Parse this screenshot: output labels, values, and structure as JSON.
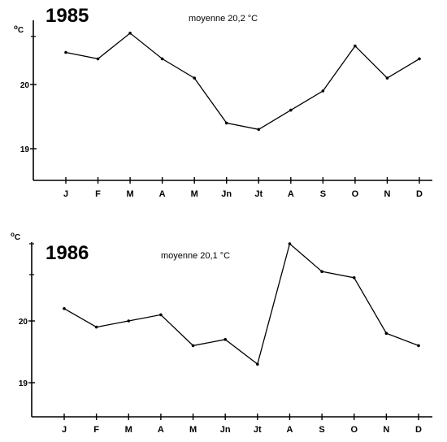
{
  "chart_data": [
    {
      "type": "line",
      "title": "1985",
      "subtitle": "moyenne 20,2",
      "subtitle_unit": "°C",
      "unit_label": "C",
      "unit_sup": "o",
      "categories": [
        "J",
        "F",
        "M",
        "A",
        "M",
        "Jn",
        "Jt",
        "A",
        "S",
        "O",
        "N",
        "D"
      ],
      "yticks": [
        "20",
        "19"
      ],
      "ylim": [
        18.5,
        21.0
      ],
      "values": [
        20.5,
        20.4,
        20.8,
        20.4,
        20.1,
        19.4,
        19.3,
        19.6,
        19.9,
        20.6,
        20.1,
        20.4
      ]
    },
    {
      "type": "line",
      "title": "1986",
      "subtitle": "moyenne 20,1",
      "subtitle_unit": "°C",
      "unit_label": "C",
      "unit_sup": "o",
      "categories": [
        "J",
        "F",
        "M",
        "A",
        "M",
        "Jn",
        "Jt",
        "A",
        "S",
        "O",
        "N",
        "D"
      ],
      "yticks": [
        "20",
        "19"
      ],
      "ylim": [
        18.5,
        21.0
      ],
      "values": [
        20.2,
        19.9,
        20.0,
        20.1,
        19.6,
        19.7,
        19.3,
        21.25,
        20.8,
        20.7,
        19.8,
        19.6
      ]
    }
  ]
}
